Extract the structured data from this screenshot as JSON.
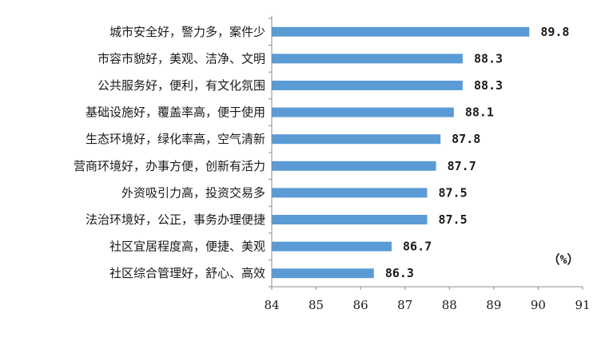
{
  "chart_data": {
    "type": "bar",
    "orientation": "horizontal",
    "categories": [
      "城市安全好，警力多，案件少",
      "市容市貌好，美观、洁净、文明",
      "公共服务好，便利，有文化氛围",
      "基础设施好，覆盖率高，便于使用",
      "生态环境好，绿化率高，空气清新",
      "营商环境好，办事方便，创新有活力",
      "外资吸引力高，投资交易多",
      "法治环境好，公正，事务办理便捷",
      "社区宜居程度高，便捷、美观",
      "社区综合管理好，舒心、高效"
    ],
    "values": [
      89.8,
      88.3,
      88.3,
      88.1,
      87.8,
      87.7,
      87.5,
      87.5,
      86.7,
      86.3
    ],
    "value_labels": [
      "89.8",
      "88.3",
      "88.3",
      "88.1",
      "87.8",
      "87.7",
      "87.5",
      "87.5",
      "86.7",
      "86.3"
    ],
    "xlim": [
      84,
      91
    ],
    "x_ticks": [
      "84",
      "85",
      "86",
      "87",
      "88",
      "89",
      "90",
      "91"
    ],
    "unit": "（%）",
    "grid": false,
    "bar_color": "#5B9BD5",
    "axis_color": "#8c8c8c"
  }
}
